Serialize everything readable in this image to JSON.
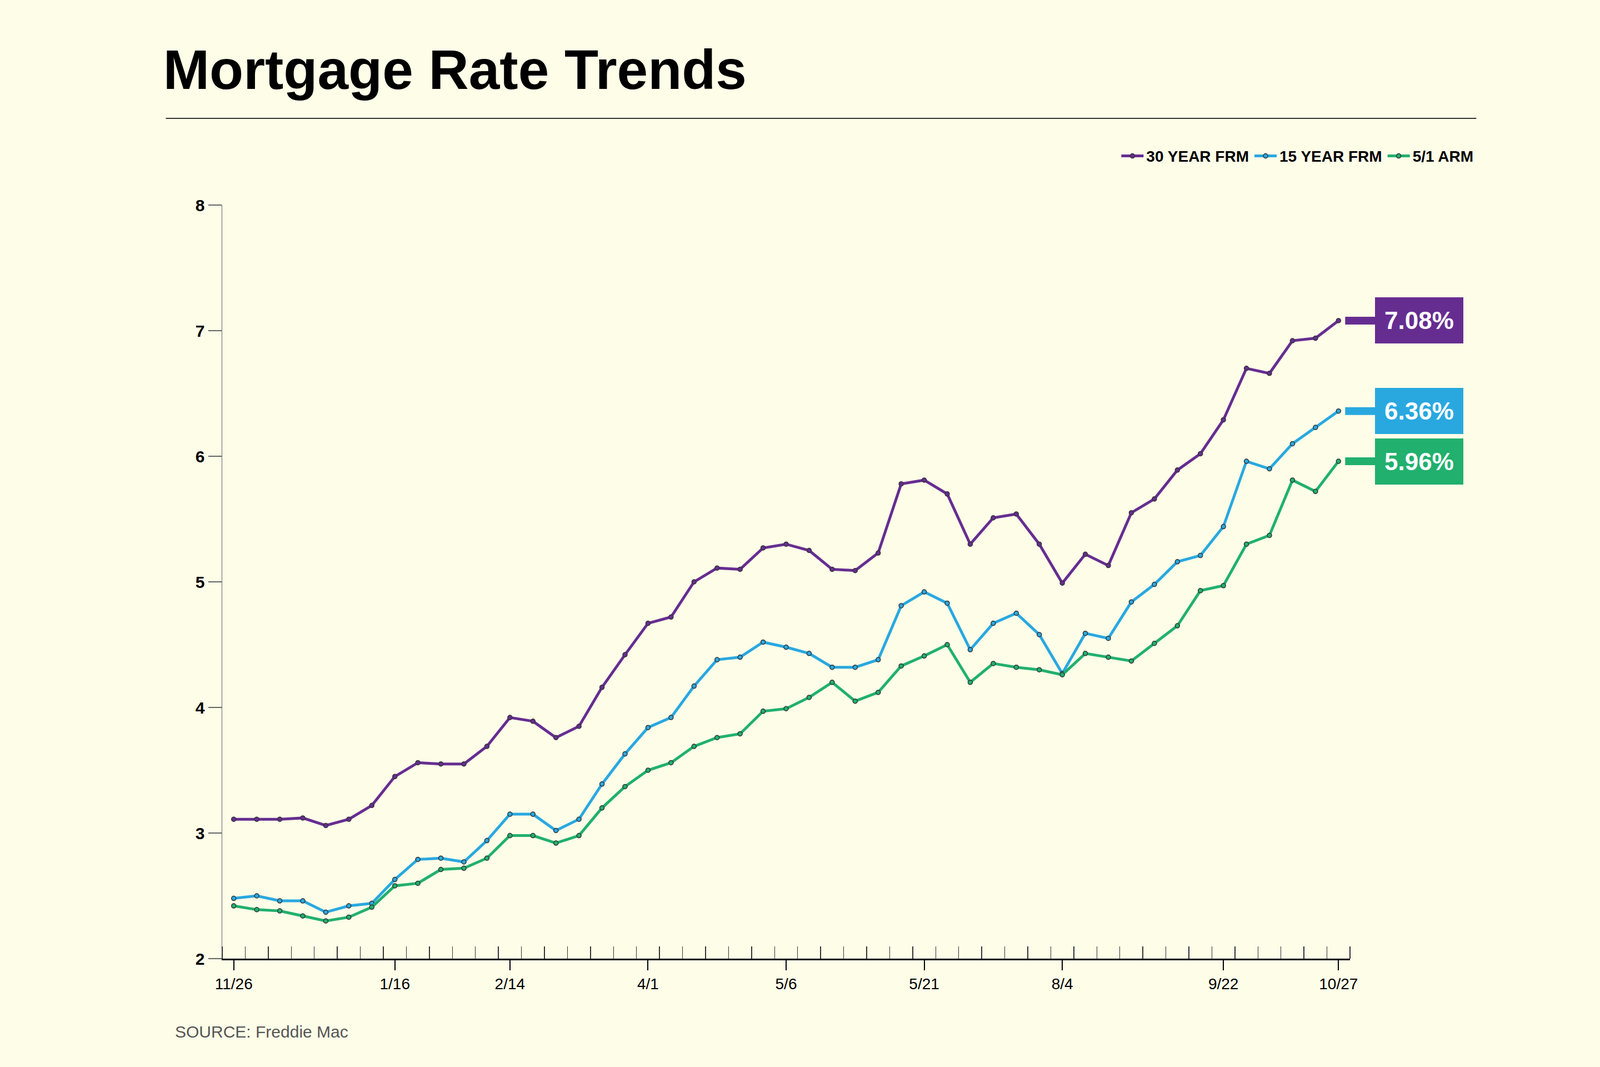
{
  "chart_data": {
    "type": "line",
    "title": "Mortgage Rate Trends",
    "source": "SOURCE: Freddie Mac",
    "categories": [
      "11/26",
      null,
      null,
      null,
      null,
      null,
      null,
      "1/16",
      null,
      null,
      null,
      null,
      "2/14",
      null,
      null,
      null,
      null,
      null,
      "4/1",
      null,
      null,
      null,
      null,
      null,
      "5/6",
      null,
      null,
      null,
      null,
      null,
      "5/21",
      null,
      null,
      null,
      null,
      null,
      "8/4",
      null,
      null,
      null,
      null,
      null,
      null,
      "9/22",
      null,
      null,
      null,
      null,
      "10/27"
    ],
    "series": [
      {
        "name": "30 YEAR FRM",
        "color": "#662d91",
        "values": [
          3.11,
          3.11,
          3.11,
          3.12,
          3.06,
          3.11,
          3.22,
          3.45,
          3.56,
          3.55,
          3.55,
          3.69,
          3.92,
          3.89,
          3.76,
          3.85,
          4.16,
          4.42,
          4.67,
          4.72,
          5.0,
          5.11,
          5.1,
          5.27,
          5.3,
          5.25,
          5.1,
          5.09,
          5.23,
          5.78,
          5.81,
          5.7,
          5.3,
          5.51,
          5.54,
          5.3,
          4.99,
          5.22,
          5.13,
          5.55,
          5.66,
          5.89,
          6.02,
          6.29,
          6.7,
          6.66,
          6.92,
          6.94,
          7.08
        ],
        "value_labels": [
          null,
          null,
          null,
          null,
          null,
          null,
          null,
          null,
          null,
          null,
          null,
          null,
          null,
          null,
          null,
          null,
          null,
          null,
          null,
          null,
          null,
          null,
          null,
          null,
          null,
          null,
          null,
          null,
          null,
          null,
          null,
          null,
          null,
          null,
          null,
          null,
          null,
          null,
          null,
          null,
          null,
          null,
          null,
          null,
          null,
          null,
          null,
          null,
          "7.08%"
        ]
      },
      {
        "name": "15 YEAR FRM",
        "color": "#29a8e0",
        "values": [
          2.48,
          2.5,
          2.46,
          2.46,
          2.37,
          2.42,
          2.44,
          2.63,
          2.79,
          2.8,
          2.77,
          2.94,
          3.15,
          3.15,
          3.02,
          3.11,
          3.39,
          3.63,
          3.84,
          3.92,
          4.17,
          4.38,
          4.4,
          4.52,
          4.48,
          4.43,
          4.32,
          4.32,
          4.38,
          4.81,
          4.92,
          4.83,
          4.46,
          4.67,
          4.75,
          4.58,
          4.27,
          4.59,
          4.55,
          4.84,
          4.98,
          5.16,
          5.21,
          5.44,
          5.96,
          5.9,
          6.1,
          6.23,
          6.36
        ],
        "value_labels": [
          null,
          null,
          null,
          null,
          null,
          null,
          null,
          null,
          null,
          null,
          null,
          null,
          null,
          null,
          null,
          null,
          null,
          null,
          null,
          null,
          null,
          null,
          null,
          null,
          null,
          null,
          null,
          null,
          null,
          null,
          null,
          null,
          null,
          null,
          null,
          null,
          null,
          null,
          null,
          null,
          null,
          null,
          null,
          null,
          null,
          null,
          null,
          null,
          "6.36%"
        ]
      },
      {
        "name": "5/1 ARM",
        "color": "#21b06e",
        "values": [
          2.42,
          2.39,
          2.38,
          2.34,
          2.3,
          2.33,
          2.41,
          2.58,
          2.6,
          2.71,
          2.72,
          2.8,
          2.98,
          2.98,
          2.92,
          2.98,
          3.2,
          3.37,
          3.5,
          3.56,
          3.69,
          3.76,
          3.79,
          3.97,
          3.99,
          4.08,
          4.2,
          4.05,
          4.12,
          4.33,
          4.41,
          4.5,
          4.2,
          4.35,
          4.32,
          4.3,
          4.26,
          4.43,
          4.4,
          4.37,
          4.51,
          4.65,
          4.93,
          4.97,
          5.3,
          5.37,
          5.81,
          5.72,
          5.96
        ],
        "value_labels": [
          null,
          null,
          null,
          null,
          null,
          null,
          null,
          null,
          null,
          null,
          null,
          null,
          null,
          null,
          null,
          null,
          null,
          null,
          null,
          null,
          null,
          null,
          null,
          null,
          null,
          null,
          null,
          null,
          null,
          null,
          null,
          null,
          null,
          null,
          null,
          null,
          null,
          null,
          null,
          null,
          null,
          null,
          null,
          null,
          null,
          null,
          null,
          null,
          "5.96%"
        ]
      }
    ],
    "ylim": [
      2,
      8
    ],
    "yticks": [
      2,
      3,
      4,
      5,
      6,
      7,
      8
    ],
    "grid": false,
    "legend": "top right",
    "marker": "circle",
    "data_labels": true
  }
}
